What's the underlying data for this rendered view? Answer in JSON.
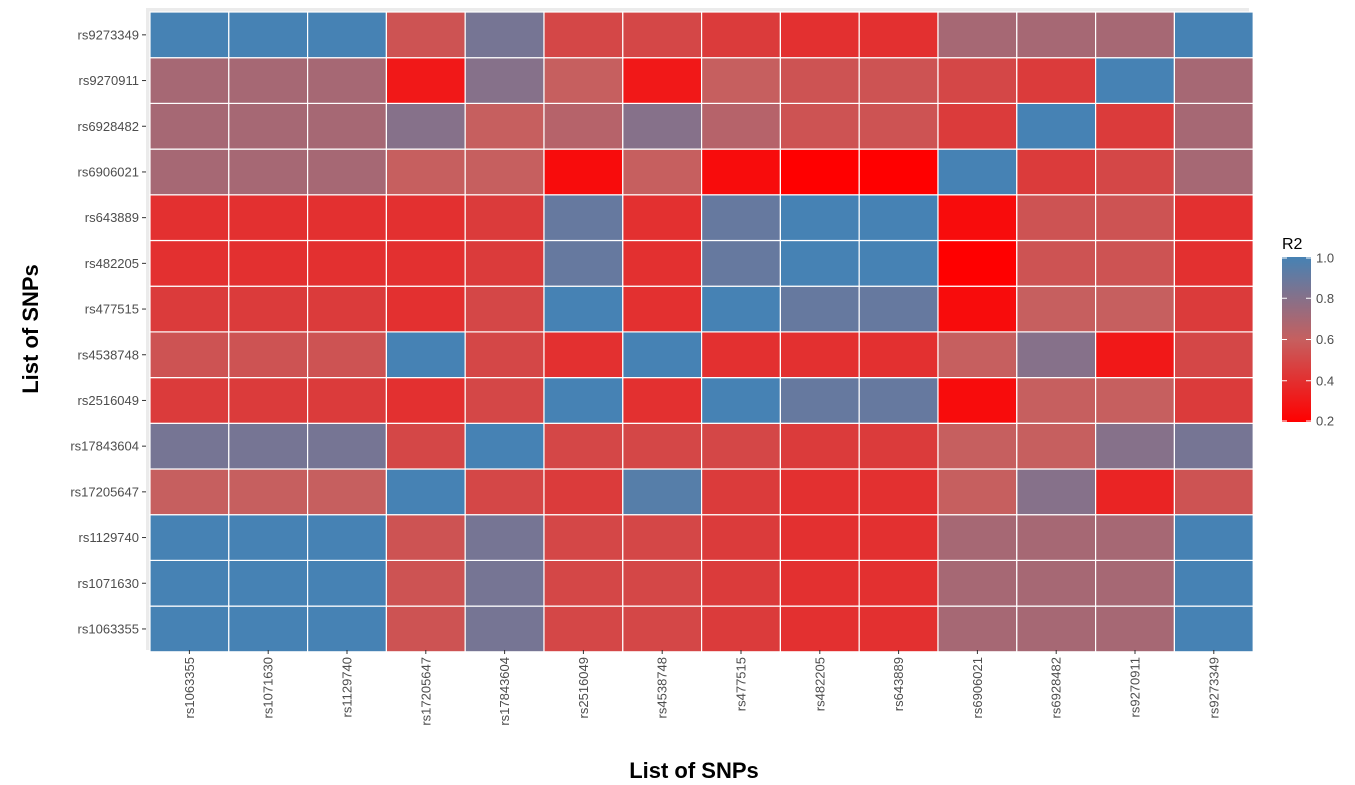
{
  "chart_data": {
    "type": "heatmap",
    "title": "",
    "xlabel": "List of SNPs",
    "ylabel": "List of SNPs",
    "x_categories": [
      "rs1063355",
      "rs1071630",
      "rs1129740",
      "rs17205647",
      "rs17843604",
      "rs2516049",
      "rs4538748",
      "rs477515",
      "rs482205",
      "rs643889",
      "rs6906021",
      "rs6928482",
      "rs9270911",
      "rs9273349"
    ],
    "y_categories": [
      "rs1063355",
      "rs1071630",
      "rs1129740",
      "rs17205647",
      "rs17843604",
      "rs2516049",
      "rs4538748",
      "rs477515",
      "rs482205",
      "rs643889",
      "rs6906021",
      "rs6928482",
      "rs9270911",
      "rs9273349"
    ],
    "values": [
      [
        1.0,
        1.0,
        1.0,
        0.55,
        0.85,
        0.5,
        0.5,
        0.45,
        0.4,
        0.4,
        0.7,
        0.7,
        0.7,
        1.0
      ],
      [
        1.0,
        1.0,
        1.0,
        0.55,
        0.85,
        0.5,
        0.5,
        0.45,
        0.4,
        0.4,
        0.7,
        0.7,
        0.7,
        1.0
      ],
      [
        1.0,
        1.0,
        1.0,
        0.55,
        0.85,
        0.5,
        0.5,
        0.45,
        0.4,
        0.4,
        0.7,
        0.7,
        0.7,
        1.0
      ],
      [
        0.6,
        0.6,
        0.6,
        1.0,
        0.5,
        0.45,
        0.95,
        0.45,
        0.4,
        0.4,
        0.6,
        0.8,
        0.35,
        0.55
      ],
      [
        0.85,
        0.85,
        0.85,
        0.5,
        1.0,
        0.5,
        0.5,
        0.5,
        0.45,
        0.45,
        0.6,
        0.6,
        0.8,
        0.85
      ],
      [
        0.45,
        0.45,
        0.45,
        0.4,
        0.5,
        1.0,
        0.4,
        1.0,
        0.9,
        0.9,
        0.25,
        0.6,
        0.6,
        0.45
      ],
      [
        0.55,
        0.55,
        0.55,
        1.0,
        0.5,
        0.4,
        1.0,
        0.4,
        0.4,
        0.4,
        0.6,
        0.8,
        0.3,
        0.5
      ],
      [
        0.45,
        0.45,
        0.45,
        0.4,
        0.5,
        1.0,
        0.4,
        1.0,
        0.9,
        0.9,
        0.25,
        0.6,
        0.6,
        0.45
      ],
      [
        0.4,
        0.4,
        0.4,
        0.4,
        0.45,
        0.9,
        0.4,
        0.9,
        1.0,
        1.0,
        0.2,
        0.55,
        0.55,
        0.4
      ],
      [
        0.4,
        0.4,
        0.4,
        0.4,
        0.45,
        0.9,
        0.4,
        0.9,
        1.0,
        1.0,
        0.25,
        0.55,
        0.55,
        0.4
      ],
      [
        0.7,
        0.7,
        0.7,
        0.6,
        0.6,
        0.25,
        0.6,
        0.25,
        0.2,
        0.2,
        1.0,
        0.45,
        0.5,
        0.7
      ],
      [
        0.7,
        0.7,
        0.7,
        0.8,
        0.6,
        0.65,
        0.8,
        0.65,
        0.55,
        0.55,
        0.45,
        1.0,
        0.45,
        0.7
      ],
      [
        0.7,
        0.7,
        0.7,
        0.3,
        0.8,
        0.6,
        0.3,
        0.6,
        0.55,
        0.55,
        0.5,
        0.45,
        1.0,
        0.7
      ],
      [
        1.0,
        1.0,
        1.0,
        0.55,
        0.85,
        0.5,
        0.5,
        0.45,
        0.4,
        0.4,
        0.7,
        0.7,
        0.7,
        1.0
      ]
    ],
    "legend": {
      "title": "R2",
      "ticks": [
        1.0,
        0.8,
        0.6,
        0.4,
        0.2
      ],
      "tick_labels": [
        "1.0",
        "0.8",
        "0.6",
        "0.4",
        "0.2"
      ],
      "range": [
        0.2,
        1.0
      ],
      "low_color": "#ff0000",
      "high_color": "#4682b4",
      "placement": "right"
    }
  }
}
